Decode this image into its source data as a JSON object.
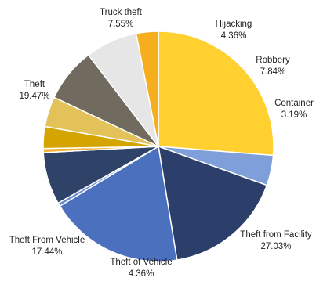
{
  "chart_data": {
    "type": "pie",
    "title": "",
    "start_angle_deg": -90,
    "direction": "clockwise",
    "legend": "none",
    "slices": [
      {
        "name": "Theft from Facility",
        "value": 27.03,
        "label": "27.03%",
        "color": "#FFD02F"
      },
      {
        "name": "Theft of Vehicle",
        "value": 4.36,
        "label": "4.36%",
        "color": "#7F9FDB"
      },
      {
        "name": "Theft From Vehicle",
        "value": 17.44,
        "label": "17.44%",
        "color": "#2C3F6B"
      },
      {
        "name": "Theft",
        "value": 19.47,
        "label": "19.47%",
        "color": "#4A70BE"
      },
      {
        "name": "",
        "value": 0.5,
        "label": "",
        "color": "#6B8ACB"
      },
      {
        "name": "Truck theft",
        "value": 7.55,
        "label": "7.55%",
        "color": "#2F4268"
      },
      {
        "name": "",
        "value": 0.6,
        "label": "",
        "color": "#F0B33A"
      },
      {
        "name": "",
        "value": 3.15,
        "label": "",
        "color": "#D4A500"
      },
      {
        "name": "Hijacking",
        "value": 4.36,
        "label": "4.36%",
        "color": "#E3C25A"
      },
      {
        "name": "Robbery",
        "value": 7.84,
        "label": "7.84%",
        "color": "#716A5E"
      },
      {
        "name": "",
        "value": 7.5,
        "label": "",
        "color": "#E6E6E6"
      },
      {
        "name": "Container",
        "value": 3.19,
        "label": "3.19%",
        "color": "#F4AE1E"
      }
    ]
  }
}
